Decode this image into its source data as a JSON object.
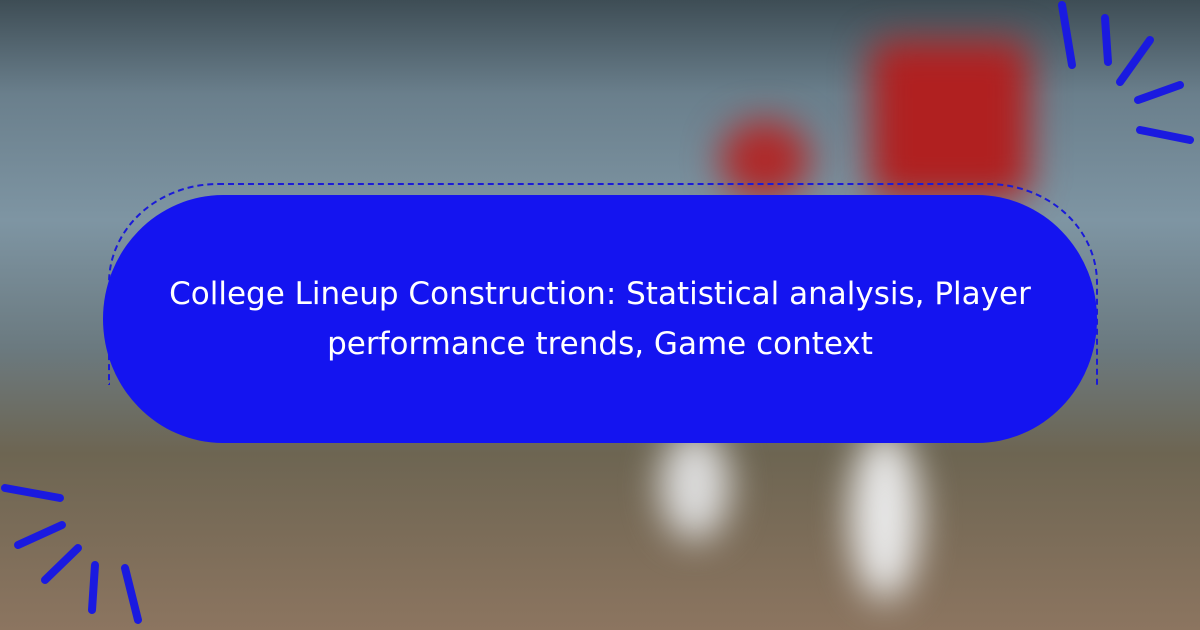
{
  "title": "College Lineup Construction: Statistical analysis, Player performance trends, Game context",
  "colors": {
    "banner": "#1414f0",
    "accent": "#1a1ae0"
  }
}
